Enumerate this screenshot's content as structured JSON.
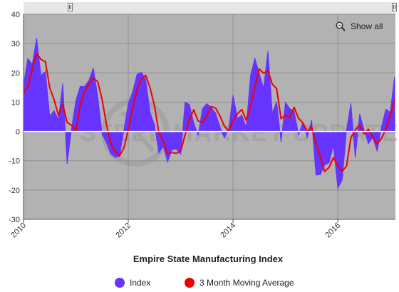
{
  "chart_data": {
    "type": "area",
    "title": "",
    "xlabel": "Empire State Manufacturing Index",
    "ylabel": "",
    "ylim": [
      -30,
      40
    ],
    "yticks": [
      -30,
      -20,
      -10,
      0,
      10,
      20,
      30,
      40
    ],
    "xlim": [
      2010.0,
      2017.1
    ],
    "xticks": [
      "2010",
      "2012",
      "2014",
      "2016"
    ],
    "grid": true,
    "legend_position": "bottom-center",
    "series": [
      {
        "name": "Index",
        "color": "#6633ff",
        "points": [
          [
            2010.0,
            15.9
          ],
          [
            2010.083,
            24.9
          ],
          [
            2010.167,
            22.9
          ],
          [
            2010.25,
            31.9
          ],
          [
            2010.333,
            19.1
          ],
          [
            2010.417,
            20.4
          ],
          [
            2010.5,
            5.2
          ],
          [
            2010.583,
            7.1
          ],
          [
            2010.667,
            4.1
          ],
          [
            2010.75,
            16.4
          ],
          [
            2010.833,
            -11.1
          ],
          [
            2010.917,
            1.0
          ],
          [
            2011.0,
            10.6
          ],
          [
            2011.083,
            15.4
          ],
          [
            2011.167,
            15.4
          ],
          [
            2011.25,
            17.5
          ],
          [
            2011.333,
            21.7
          ],
          [
            2011.417,
            11.9
          ],
          [
            2011.5,
            -1.0
          ],
          [
            2011.583,
            -3.8
          ],
          [
            2011.667,
            -7.7
          ],
          [
            2011.75,
            -8.8
          ],
          [
            2011.833,
            -8.5
          ],
          [
            2011.917,
            0.6
          ],
          [
            2012.0,
            9.5
          ],
          [
            2012.083,
            13.5
          ],
          [
            2012.167,
            19.5
          ],
          [
            2012.25,
            20.2
          ],
          [
            2012.333,
            17.8
          ],
          [
            2012.417,
            6.4
          ],
          [
            2012.5,
            2.3
          ],
          [
            2012.583,
            -7.4
          ],
          [
            2012.667,
            -5.0
          ],
          [
            2012.75,
            -10.4
          ],
          [
            2012.833,
            -6.2
          ],
          [
            2012.917,
            -6.0
          ],
          [
            2013.0,
            -7.8
          ],
          [
            2013.083,
            10.0
          ],
          [
            2013.167,
            9.2
          ],
          [
            2013.25,
            3.0
          ],
          [
            2013.333,
            -1.4
          ],
          [
            2013.417,
            7.8
          ],
          [
            2013.5,
            9.5
          ],
          [
            2013.583,
            8.2
          ],
          [
            2013.667,
            6.3
          ],
          [
            2013.75,
            1.5
          ],
          [
            2013.833,
            -2.2
          ],
          [
            2013.917,
            0.9
          ],
          [
            2014.0,
            12.5
          ],
          [
            2014.083,
            4.5
          ],
          [
            2014.167,
            5.6
          ],
          [
            2014.25,
            1.3
          ],
          [
            2014.333,
            19.0
          ],
          [
            2014.417,
            25.0
          ],
          [
            2014.5,
            19.9
          ],
          [
            2014.583,
            14.7
          ],
          [
            2014.667,
            27.5
          ],
          [
            2014.75,
            6.2
          ],
          [
            2014.833,
            10.2
          ],
          [
            2014.917,
            -3.6
          ],
          [
            2015.0,
            9.9
          ],
          [
            2015.083,
            7.8
          ],
          [
            2015.167,
            6.9
          ],
          [
            2015.25,
            -1.2
          ],
          [
            2015.333,
            3.1
          ],
          [
            2015.417,
            -2.0
          ],
          [
            2015.5,
            3.9
          ],
          [
            2015.583,
            -14.9
          ],
          [
            2015.667,
            -14.7
          ],
          [
            2015.75,
            -11.4
          ],
          [
            2015.833,
            -10.7
          ],
          [
            2015.917,
            -4.6
          ],
          [
            2016.0,
            -19.4
          ],
          [
            2016.083,
            -16.6
          ],
          [
            2016.167,
            0.6
          ],
          [
            2016.25,
            9.6
          ],
          [
            2016.333,
            -9.0
          ],
          [
            2016.417,
            6.0
          ],
          [
            2016.5,
            0.6
          ],
          [
            2016.583,
            -4.2
          ],
          [
            2016.667,
            -2.0
          ],
          [
            2016.75,
            -6.8
          ],
          [
            2016.833,
            1.5
          ],
          [
            2016.917,
            7.6
          ],
          [
            2017.0,
            6.5
          ],
          [
            2017.083,
            18.7
          ]
        ]
      },
      {
        "name": "3 Month Moving Average",
        "color": "#ee0000",
        "points": [
          [
            2010.0,
            13.2
          ],
          [
            2010.083,
            15.2
          ],
          [
            2010.167,
            21.2
          ],
          [
            2010.25,
            26.6
          ],
          [
            2010.333,
            24.6
          ],
          [
            2010.417,
            23.8
          ],
          [
            2010.5,
            14.9
          ],
          [
            2010.583,
            10.9
          ],
          [
            2010.667,
            5.5
          ],
          [
            2010.75,
            9.2
          ],
          [
            2010.833,
            3.1
          ],
          [
            2010.917,
            2.1
          ],
          [
            2011.0,
            0.2
          ],
          [
            2011.083,
            9.0
          ],
          [
            2011.167,
            13.8
          ],
          [
            2011.25,
            16.1
          ],
          [
            2011.333,
            18.2
          ],
          [
            2011.417,
            17.0
          ],
          [
            2011.5,
            10.9
          ],
          [
            2011.583,
            2.4
          ],
          [
            2011.667,
            -4.2
          ],
          [
            2011.75,
            -6.8
          ],
          [
            2011.833,
            -8.3
          ],
          [
            2011.917,
            -5.6
          ],
          [
            2012.0,
            0.5
          ],
          [
            2012.083,
            7.9
          ],
          [
            2012.167,
            14.2
          ],
          [
            2012.25,
            17.7
          ],
          [
            2012.333,
            19.2
          ],
          [
            2012.417,
            14.8
          ],
          [
            2012.5,
            8.8
          ],
          [
            2012.583,
            -0.2
          ],
          [
            2012.667,
            -3.4
          ],
          [
            2012.75,
            -7.6
          ],
          [
            2012.833,
            -7.2
          ],
          [
            2012.917,
            -7.5
          ],
          [
            2013.0,
            -6.7
          ],
          [
            2013.083,
            -1.3
          ],
          [
            2013.167,
            3.8
          ],
          [
            2013.25,
            7.4
          ],
          [
            2013.333,
            3.6
          ],
          [
            2013.417,
            3.1
          ],
          [
            2013.5,
            5.3
          ],
          [
            2013.583,
            8.5
          ],
          [
            2013.667,
            8.0
          ],
          [
            2013.75,
            5.3
          ],
          [
            2013.833,
            1.9
          ],
          [
            2013.917,
            0.1
          ],
          [
            2014.0,
            3.7
          ],
          [
            2014.083,
            6.0
          ],
          [
            2014.167,
            7.5
          ],
          [
            2014.25,
            3.8
          ],
          [
            2014.333,
            8.6
          ],
          [
            2014.417,
            15.1
          ],
          [
            2014.5,
            21.3
          ],
          [
            2014.583,
            19.9
          ],
          [
            2014.667,
            20.7
          ],
          [
            2014.75,
            16.1
          ],
          [
            2014.833,
            14.6
          ],
          [
            2014.917,
            4.3
          ],
          [
            2015.0,
            5.5
          ],
          [
            2015.083,
            4.7
          ],
          [
            2015.167,
            8.2
          ],
          [
            2015.25,
            4.5
          ],
          [
            2015.333,
            2.9
          ],
          [
            2015.417,
            0.0
          ],
          [
            2015.5,
            1.7
          ],
          [
            2015.583,
            -4.3
          ],
          [
            2015.667,
            -8.6
          ],
          [
            2015.75,
            -13.7
          ],
          [
            2015.833,
            -12.3
          ],
          [
            2015.917,
            -8.9
          ],
          [
            2016.0,
            -11.6
          ],
          [
            2016.083,
            -13.6
          ],
          [
            2016.167,
            -11.8
          ],
          [
            2016.25,
            -2.1
          ],
          [
            2016.333,
            0.4
          ],
          [
            2016.417,
            2.2
          ],
          [
            2016.5,
            -0.8
          ],
          [
            2016.583,
            0.8
          ],
          [
            2016.667,
            -1.9
          ],
          [
            2016.75,
            -4.3
          ],
          [
            2016.833,
            -2.4
          ],
          [
            2016.917,
            0.8
          ],
          [
            2017.0,
            5.2
          ],
          [
            2017.083,
            10.9
          ]
        ]
      }
    ]
  },
  "controls": {
    "show_all_label": "Show all",
    "zoom_icon": "magnifier-zoom-out-icon"
  },
  "watermark_text": "STEEL MARKET UPDATE",
  "colors": {
    "plot_background": "#b2b2b2",
    "gridline": "#8e8e8e",
    "navigator_background": "#e6e6e6"
  }
}
